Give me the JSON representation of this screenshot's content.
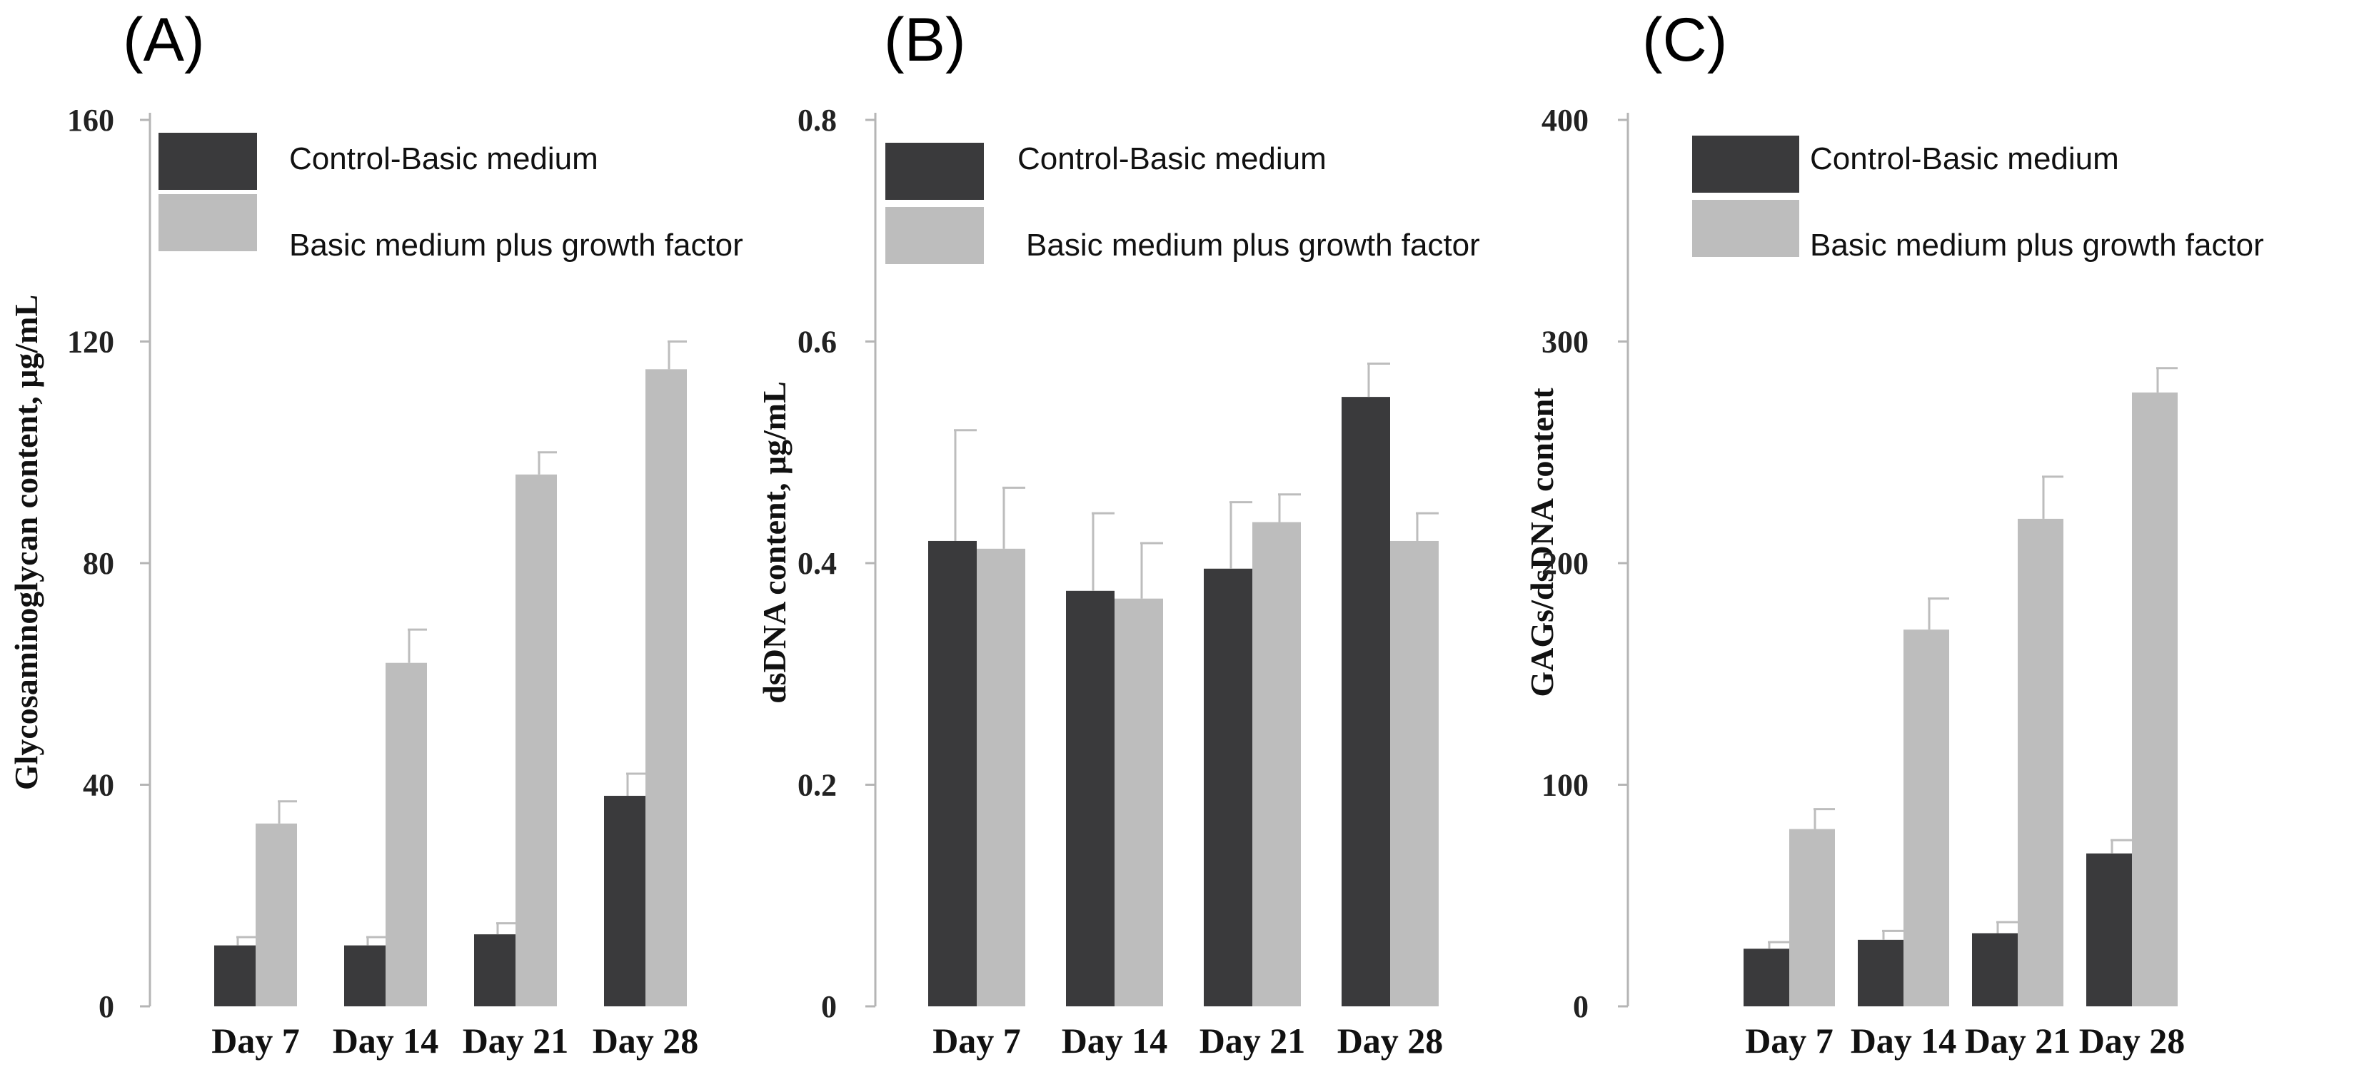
{
  "chart_data": [
    {
      "panel": "(A)",
      "type": "bar",
      "categories": [
        "Day 7",
        "Day 14",
        "Day 21",
        "Day 28"
      ],
      "ylabel": "Glycosaminoglycan content, μg/mL",
      "ylim": [
        0,
        160
      ],
      "yticks": [
        "0",
        "40",
        "80",
        "120",
        "160"
      ],
      "legend_position": "top-left",
      "series": [
        {
          "name": "Control-Basic medium",
          "color": "#3a3a3c",
          "values": [
            11,
            11,
            13,
            38
          ],
          "errors": [
            1.5,
            1.5,
            2,
            4
          ]
        },
        {
          "name": "Basic medium plus growth factor",
          "color": "#bdbdbd",
          "values": [
            33,
            62,
            96,
            115
          ],
          "errors": [
            4,
            6,
            4,
            5
          ]
        }
      ]
    },
    {
      "panel": "(B)",
      "type": "bar",
      "categories": [
        "Day 7",
        "Day 14",
        "Day 21",
        "Day 28"
      ],
      "ylabel": "dsDNA content, μg/mL",
      "ylim": [
        0,
        0.8
      ],
      "yticks": [
        "0",
        "0.2",
        "0.4",
        "0.6",
        "0.8"
      ],
      "legend_position": "top-left",
      "series": [
        {
          "name": "Control-Basic medium",
          "color": "#3a3a3c",
          "values": [
            0.42,
            0.375,
            0.395,
            0.55
          ],
          "errors": [
            0.1,
            0.07,
            0.06,
            0.03
          ]
        },
        {
          "name": "Basic medium plus growth factor",
          "color": "#bdbdbd",
          "values": [
            0.413,
            0.368,
            0.437,
            0.42
          ],
          "errors": [
            0.055,
            0.05,
            0.025,
            0.025
          ]
        }
      ]
    },
    {
      "panel": "(C)",
      "type": "bar",
      "categories": [
        "Day 7",
        "Day 14",
        "Day 21",
        "Day 28"
      ],
      "ylabel": "GAGs/dsDNA content",
      "ylim": [
        0,
        400
      ],
      "yticks": [
        "0",
        "100",
        "200",
        "300",
        "400"
      ],
      "legend_position": "top-left",
      "series": [
        {
          "name": "Control-Basic medium",
          "color": "#3a3a3c",
          "values": [
            26,
            30,
            33,
            69
          ],
          "errors": [
            3,
            4,
            5,
            6
          ]
        },
        {
          "name": "Basic medium plus growth factor",
          "color": "#bdbdbd",
          "values": [
            80,
            170,
            220,
            277
          ],
          "errors": [
            9,
            14,
            19,
            11
          ]
        }
      ]
    }
  ]
}
